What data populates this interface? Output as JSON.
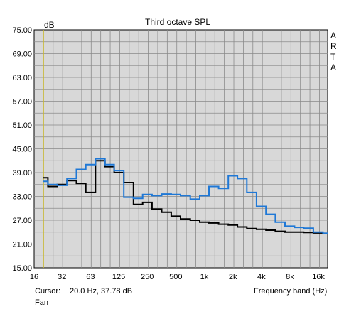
{
  "window": {
    "title": "Third octave SPL",
    "ylabel": "dB",
    "xlabel": "Frequency band (Hz)",
    "watermark": [
      "A",
      "R",
      "T",
      "A"
    ],
    "cursor": {
      "label": "Cursor:",
      "value": "20.0 Hz, 37.78 dB"
    },
    "footer": "Fan"
  },
  "colors": {
    "background": "#ffffff",
    "plot_background": "#d8d8d8",
    "grid": "#8a8a8a",
    "cursor_line": "#e8d000",
    "series_black": "#000000",
    "series_blue": "#1f78d6"
  },
  "chart_data": {
    "type": "line",
    "step": true,
    "title": "Third octave SPL",
    "xlabel": "Frequency band (Hz)",
    "ylabel": "dB",
    "xscale": "log",
    "xlim": [
      16,
      20000
    ],
    "ylim": [
      15,
      75
    ],
    "grid": true,
    "cursor_x": 20,
    "yticks": [
      "15.00",
      "21.00",
      "27.00",
      "33.00",
      "39.00",
      "45.00",
      "51.00",
      "57.00",
      "63.00",
      "69.00",
      "75.00"
    ],
    "xticks": [
      {
        "value": 16,
        "label": "16"
      },
      {
        "value": 31.5,
        "label": "32"
      },
      {
        "value": 63,
        "label": "63"
      },
      {
        "value": 125,
        "label": "125"
      },
      {
        "value": 250,
        "label": "250"
      },
      {
        "value": 500,
        "label": "500"
      },
      {
        "value": 1000,
        "label": "1k"
      },
      {
        "value": 2000,
        "label": "2k"
      },
      {
        "value": 4000,
        "label": "4k"
      },
      {
        "value": 8000,
        "label": "8k"
      },
      {
        "value": 16000,
        "label": "16k"
      }
    ],
    "x": [
      20,
      25,
      31.5,
      40,
      50,
      63,
      80,
      100,
      125,
      160,
      200,
      250,
      315,
      400,
      500,
      630,
      800,
      1000,
      1250,
      1600,
      2000,
      2500,
      3150,
      4000,
      5000,
      6300,
      8000,
      10000,
      12500,
      16000,
      20000
    ],
    "series": [
      {
        "color": "#000000",
        "values": [
          37.7,
          35.5,
          36.0,
          37.0,
          36.3,
          34.0,
          42.0,
          40.5,
          39.0,
          36.5,
          31.0,
          31.5,
          29.8,
          29.0,
          28.0,
          27.3,
          27.0,
          26.5,
          26.3,
          26.0,
          25.8,
          25.3,
          24.9,
          24.7,
          24.5,
          24.2,
          24.0,
          24.0,
          23.9,
          23.8,
          23.6
        ]
      },
      {
        "color": "#1f78d6",
        "values": [
          36.8,
          36.0,
          35.8,
          37.5,
          39.8,
          41.0,
          42.5,
          41.0,
          39.5,
          32.8,
          32.5,
          33.5,
          33.2,
          33.6,
          33.5,
          33.2,
          32.3,
          33.2,
          35.5,
          35.0,
          38.2,
          37.5,
          34.0,
          30.5,
          28.5,
          26.5,
          25.5,
          25.2,
          25.0,
          24.0,
          23.7
        ]
      }
    ]
  }
}
